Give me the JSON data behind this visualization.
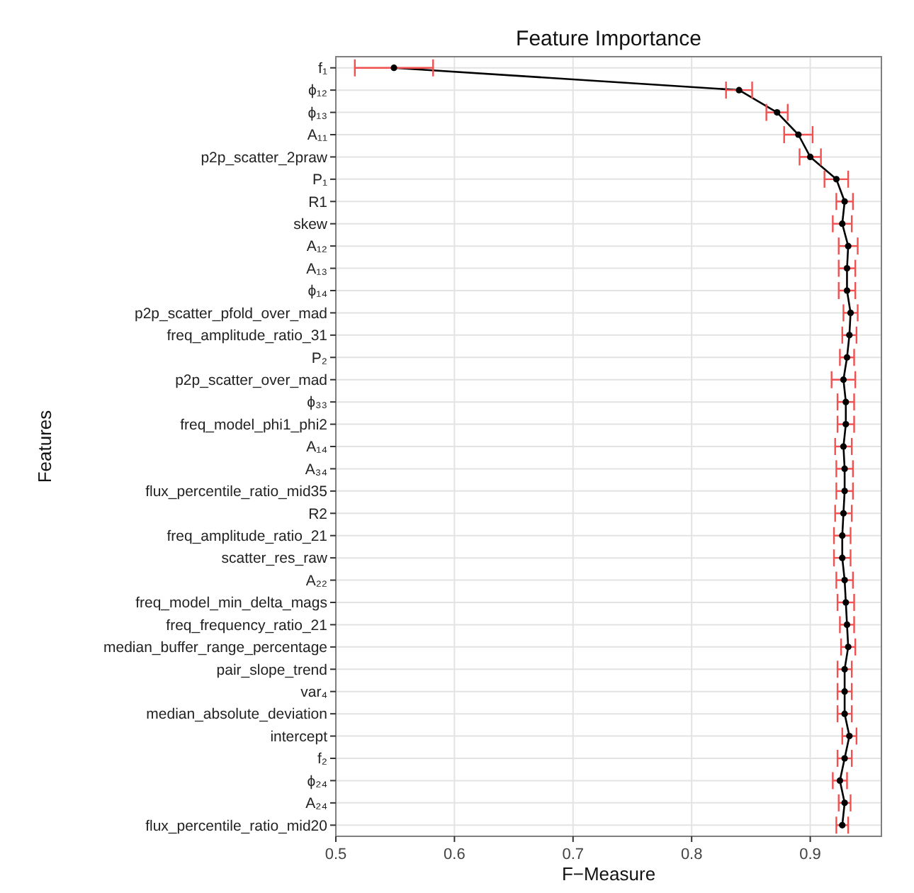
{
  "chart_data": {
    "type": "line",
    "orientation": "horizontal",
    "title": "Feature Importance",
    "xlabel": "F−Measure",
    "ylabel": "Features",
    "categories": [
      "f₁",
      "ϕ₁₂",
      "ϕ₁₃",
      "A₁₁",
      "p2p_scatter_2praw",
      "P₁",
      "R1",
      "skew",
      "A₁₂",
      "A₁₃",
      "ϕ₁₄",
      "p2p_scatter_pfold_over_mad",
      "freq_amplitude_ratio_31",
      "P₂",
      "p2p_scatter_over_mad",
      "ϕ₃₃",
      "freq_model_phi1_phi2",
      "A₁₄",
      "A₃₄",
      "flux_percentile_ratio_mid35",
      "R2",
      "freq_amplitude_ratio_21",
      "scatter_res_raw",
      "A₂₂",
      "freq_model_min_delta_mags",
      "freq_frequency_ratio_21",
      "median_buffer_range_percentage",
      "pair_slope_trend",
      "var₄",
      "median_absolute_deviation",
      "intercept",
      "f₂",
      "ϕ₂₄",
      "A₂₄",
      "flux_percentile_ratio_mid20"
    ],
    "series": [
      {
        "color": "#000000",
        "values": [
          0.549,
          0.84,
          0.872,
          0.89,
          0.9,
          0.922,
          0.929,
          0.927,
          0.932,
          0.931,
          0.931,
          0.934,
          0.933,
          0.931,
          0.928,
          0.93,
          0.93,
          0.928,
          0.929,
          0.929,
          0.928,
          0.927,
          0.927,
          0.929,
          0.93,
          0.931,
          0.932,
          0.929,
          0.929,
          0.929,
          0.933,
          0.929,
          0.925,
          0.929,
          0.927
        ],
        "errors": [
          0.033,
          0.011,
          0.009,
          0.012,
          0.009,
          0.01,
          0.007,
          0.008,
          0.008,
          0.007,
          0.007,
          0.006,
          0.006,
          0.006,
          0.01,
          0.007,
          0.007,
          0.007,
          0.007,
          0.007,
          0.007,
          0.007,
          0.007,
          0.007,
          0.007,
          0.006,
          0.006,
          0.006,
          0.006,
          0.006,
          0.006,
          0.006,
          0.006,
          0.005,
          0.005
        ]
      }
    ],
    "xlim": [
      0.5,
      0.96
    ],
    "xticks": [
      0.5,
      0.6,
      0.7,
      0.8,
      0.9
    ],
    "grid": true,
    "marker": "circle",
    "line_style": "solid"
  }
}
